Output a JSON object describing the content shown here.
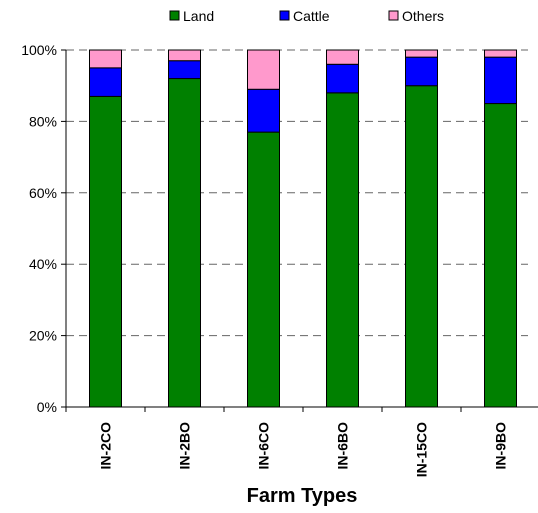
{
  "chart_data": {
    "type": "bar",
    "stacked": true,
    "categories": [
      "IN-2CO",
      "IN-2BO",
      "IN-6CO",
      "IN-6BO",
      "IN-15CO",
      "IN-9BO"
    ],
    "series": [
      {
        "name": "Land",
        "color": "#008000",
        "values": [
          87,
          92,
          77,
          88,
          90,
          85
        ]
      },
      {
        "name": "Cattle",
        "color": "#0000ff",
        "values": [
          8,
          5,
          12,
          8,
          8,
          13
        ]
      },
      {
        "name": "Others",
        "color": "#ff99cc",
        "values": [
          5,
          3,
          11,
          4,
          2,
          2
        ]
      }
    ],
    "xlabel": "Farm Types",
    "ylabel": "",
    "ylim": [
      0,
      100
    ],
    "yticks": [
      "0%",
      "20%",
      "40%",
      "60%",
      "80%",
      "100%"
    ],
    "grid": "horizontal dashed",
    "legend_position": "top"
  }
}
